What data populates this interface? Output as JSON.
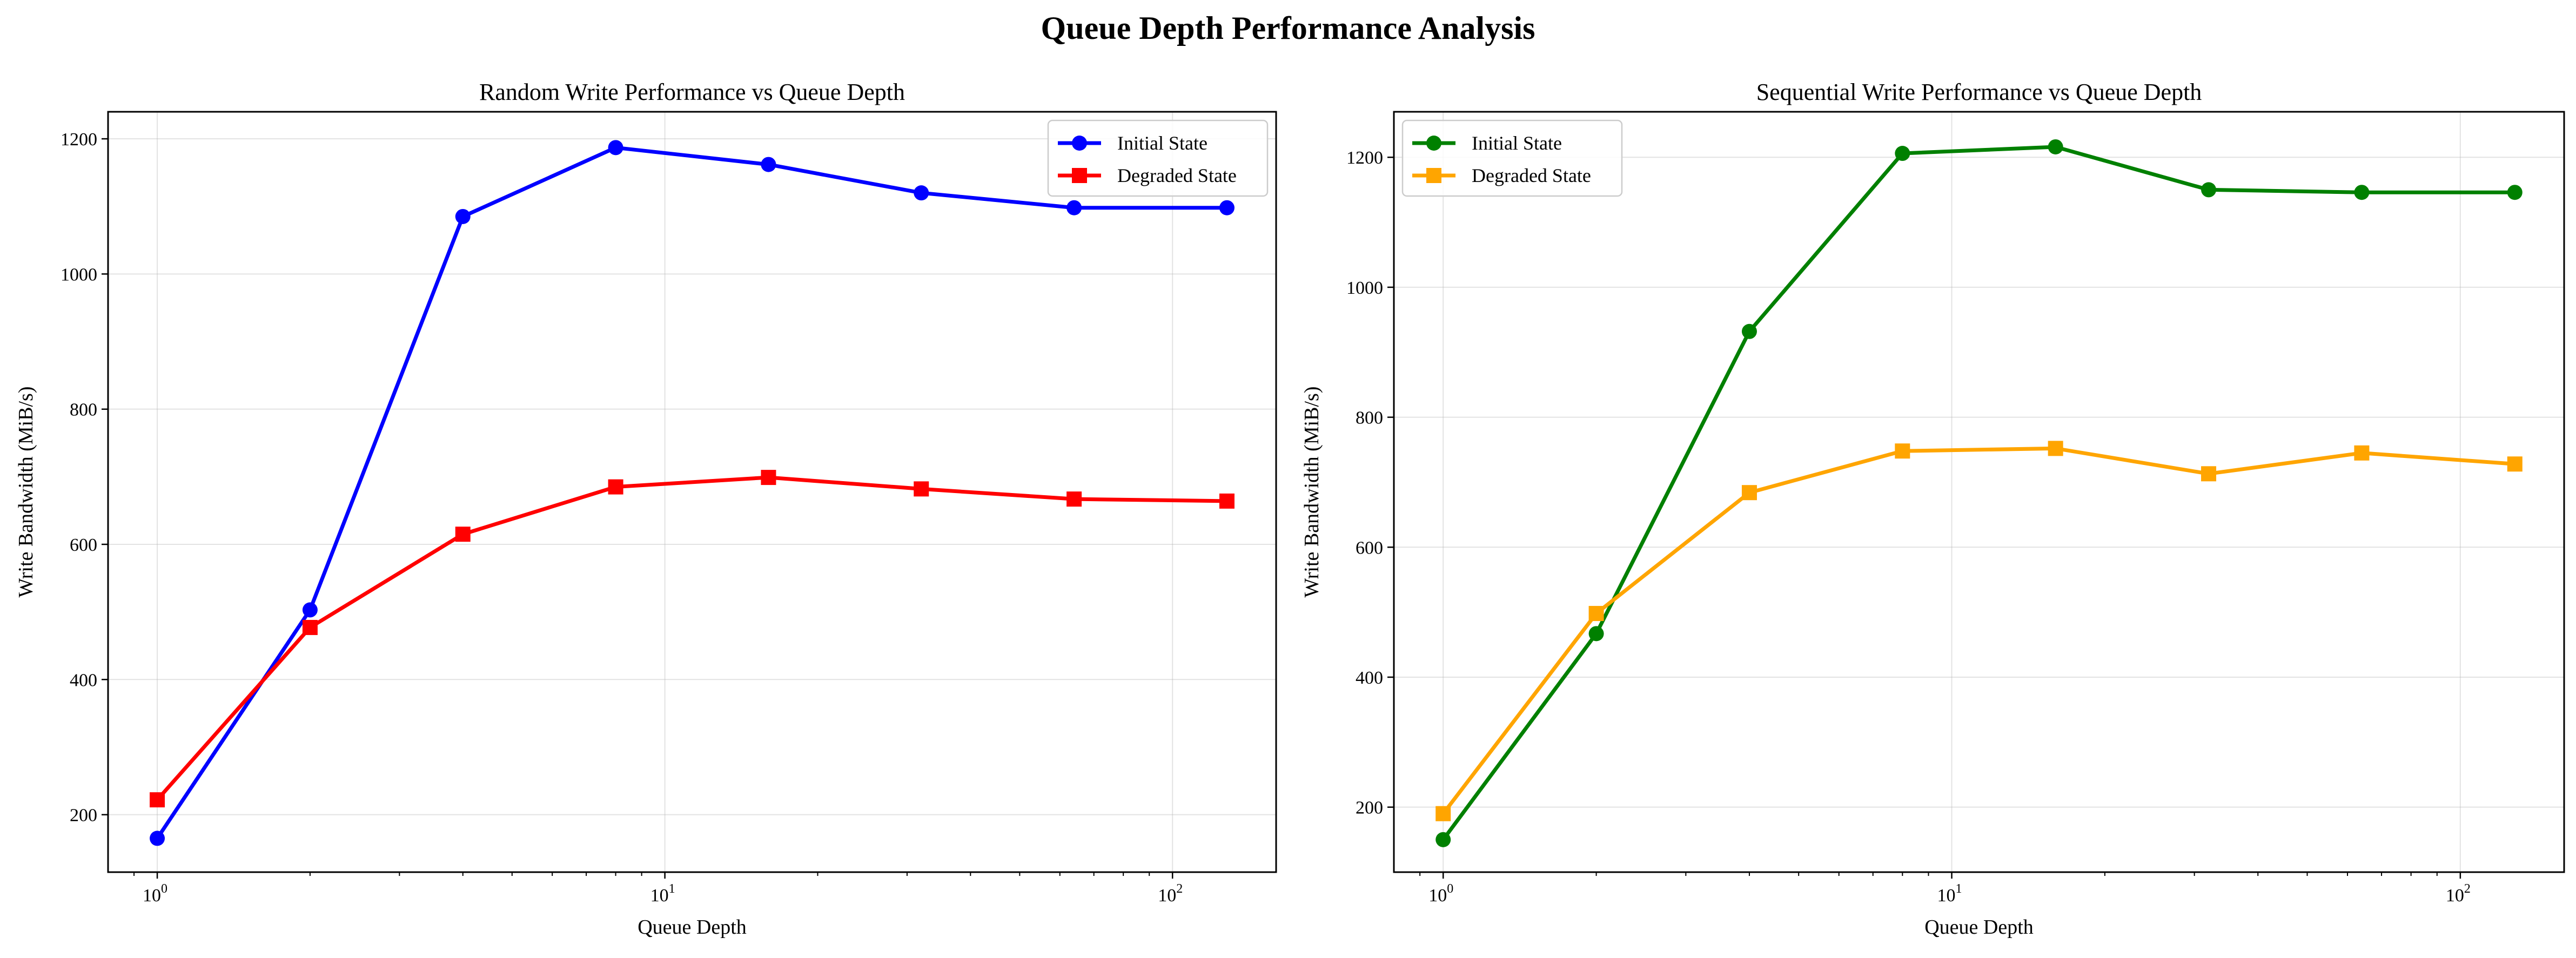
{
  "figure": {
    "title": "Queue Depth Performance Analysis"
  },
  "chart_data": [
    {
      "type": "line",
      "title": "Random Write Performance vs Queue Depth",
      "xlabel": "Queue Depth",
      "ylabel": "Write Bandwidth (MiB/s)",
      "xscale": "log",
      "xlim": [
        0.8,
        160
      ],
      "ylim": [
        115,
        1240
      ],
      "xticks": [
        1,
        10,
        100
      ],
      "yticks": [
        200,
        400,
        600,
        800,
        1000,
        1200
      ],
      "grid": true,
      "legend": "top-right",
      "x": [
        1,
        2,
        4,
        8,
        16,
        32,
        64,
        128
      ],
      "series": [
        {
          "name": "Initial State",
          "marker": "circle",
          "color": "#0000ff",
          "values": [
            165,
            503,
            1085,
            1187,
            1162,
            1120,
            1098,
            1098
          ]
        },
        {
          "name": "Degraded State",
          "marker": "square",
          "color": "#ff0000",
          "values": [
            222,
            477,
            615,
            685,
            699,
            682,
            667,
            664
          ]
        }
      ]
    },
    {
      "type": "line",
      "title": "Sequential Write Performance vs Queue Depth",
      "xlabel": "Queue Depth",
      "ylabel": "Write Bandwidth (MiB/s)",
      "xscale": "log",
      "xlim": [
        0.8,
        160
      ],
      "ylim": [
        100,
        1270
      ],
      "xticks": [
        1,
        10,
        100
      ],
      "yticks": [
        200,
        400,
        600,
        800,
        1000,
        1200
      ],
      "grid": true,
      "legend": "top-left",
      "x": [
        1,
        2,
        4,
        8,
        16,
        32,
        64,
        128
      ],
      "series": [
        {
          "name": "Initial State",
          "marker": "circle",
          "color": "#008000",
          "values": [
            150,
            467,
            932,
            1206,
            1216,
            1150,
            1146,
            1146
          ]
        },
        {
          "name": "Degraded State",
          "marker": "square",
          "color": "#ffa500",
          "values": [
            190,
            498,
            684,
            748,
            752,
            713,
            745,
            728
          ]
        }
      ]
    }
  ]
}
